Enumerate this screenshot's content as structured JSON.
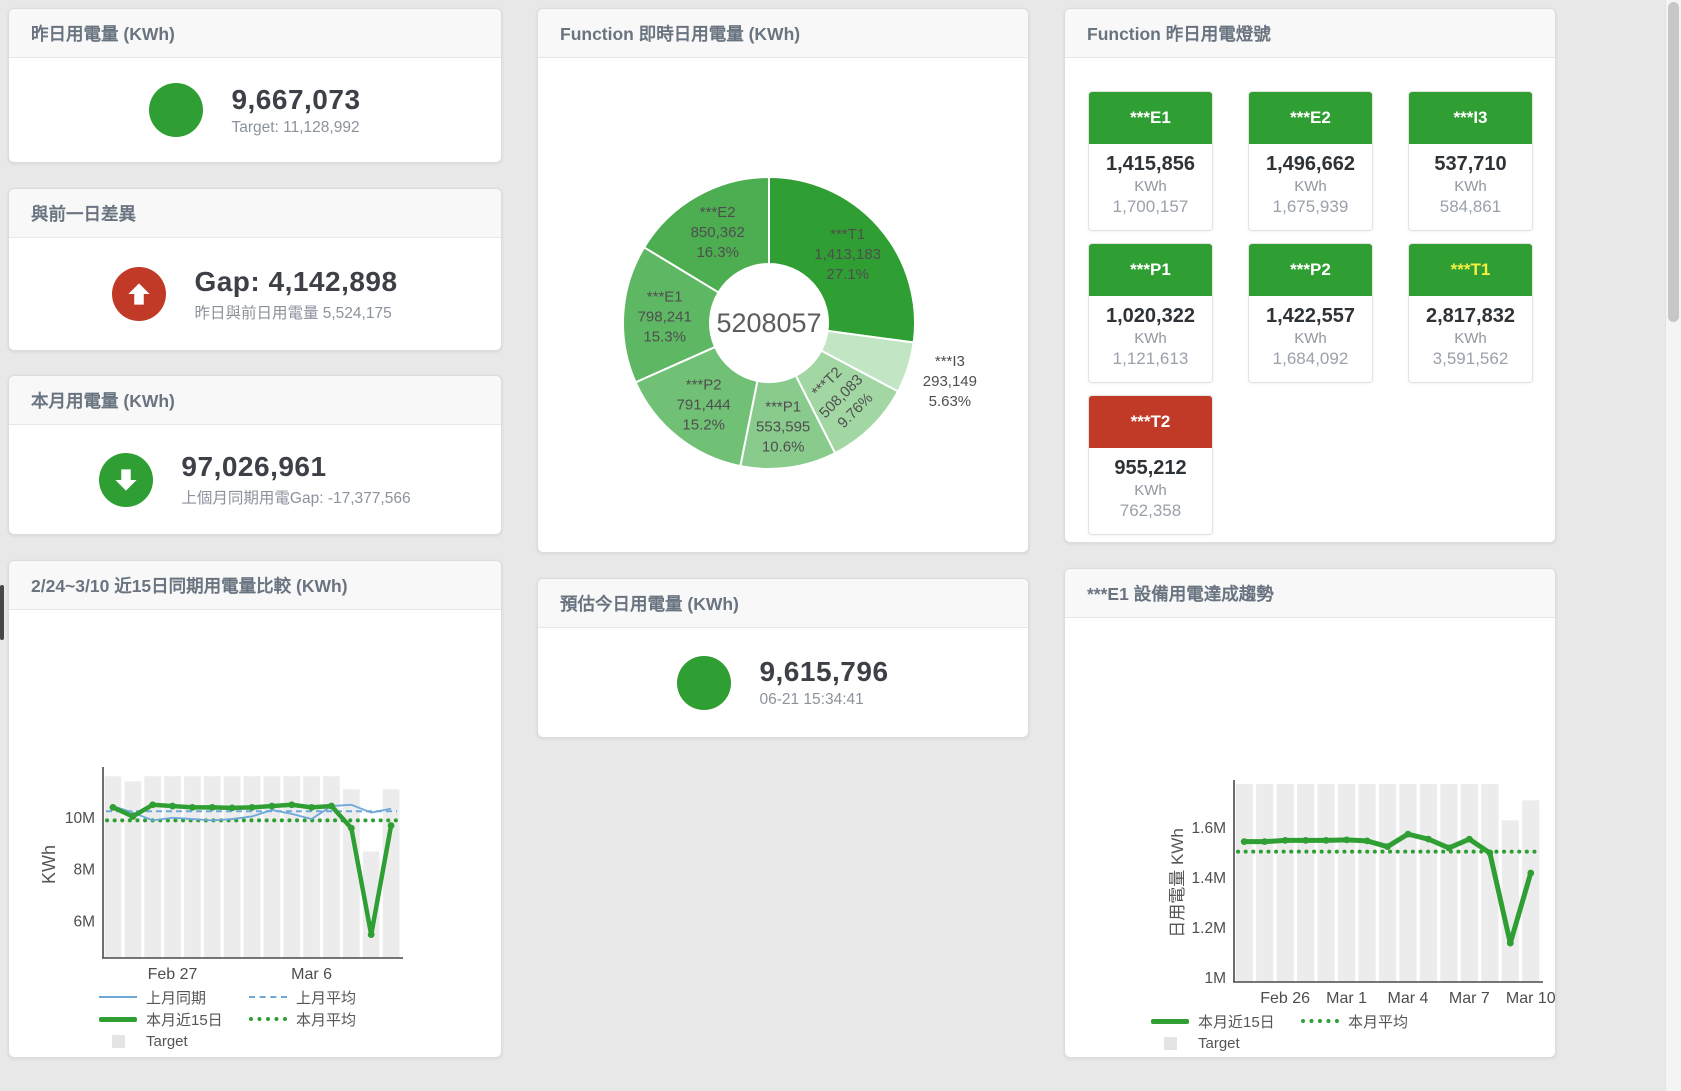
{
  "theme": {
    "page_bg": "#e8e8e8",
    "green": "#2f9e33",
    "red": "#c13a27",
    "yellow": "#f5f042",
    "blue": "#6ea8d8",
    "bar_gray": "#ececec",
    "axis_color": "#4a4a4a",
    "tick_color": "#4d4d4d"
  },
  "stat_cards": {
    "yesterday": {
      "title": "昨日用電量 (KWh)",
      "value": "9,667,073",
      "subtitle": "Target: 11,128,992",
      "indicator": "circle",
      "color": "green"
    },
    "gap": {
      "title": "與前一日差異",
      "value": "Gap: 4,142,898",
      "subtitle": "昨日與前日用電量 5,524,175",
      "indicator": "arrow-up",
      "color": "red"
    },
    "month": {
      "title": "本月用電量 (KWh)",
      "value": "97,026,961",
      "subtitle": "上個月同期用電Gap: -17,377,566",
      "indicator": "arrow-down",
      "color": "green"
    },
    "forecast": {
      "title": "預估今日用電量 (KWh)",
      "value": "9,615,796",
      "subtitle": "06-21 15:34:41",
      "indicator": "circle",
      "color": "green"
    }
  },
  "lights_card": {
    "title": "Function 昨日用電燈號",
    "unit": "KWh",
    "tiles": [
      {
        "label": "***E1",
        "value": "1,415,856",
        "target": "1,700,157",
        "status": "green",
        "label_color": "#ffffff"
      },
      {
        "label": "***E2",
        "value": "1,496,662",
        "target": "1,675,939",
        "status": "green",
        "label_color": "#ffffff"
      },
      {
        "label": "***I3",
        "value": "537,710",
        "target": "584,861",
        "status": "green",
        "label_color": "#ffffff"
      },
      {
        "label": "***P1",
        "value": "1,020,322",
        "target": "1,121,613",
        "status": "green",
        "label_color": "#ffffff"
      },
      {
        "label": "***P2",
        "value": "1,422,557",
        "target": "1,684,092",
        "status": "green",
        "label_color": "#ffffff"
      },
      {
        "label": "***T1",
        "value": "2,817,832",
        "target": "3,591,562",
        "status": "green",
        "label_color": "#f5f042"
      },
      {
        "label": "***T2",
        "value": "955,212",
        "target": "762,358",
        "status": "red",
        "label_color": "#ffffff"
      }
    ]
  },
  "chart_data": [
    {
      "id": "donut",
      "type": "pie",
      "title": "Function 即時日用電量 (KWh)",
      "center_total": "5208057",
      "legend_position": "none",
      "slices": [
        {
          "name": "***T1",
          "value": 1413183,
          "value_str": "1,413,183",
          "pct": "27.1%",
          "color": "#2f9e33",
          "label": "inside"
        },
        {
          "name": "***I3",
          "value": 293149,
          "value_str": "293,149",
          "pct": "5.63%",
          "color": "#c2e6c3",
          "label": "outside"
        },
        {
          "name": "***T2",
          "value": 508083,
          "value_str": "508,083",
          "pct": "9.76%",
          "color": "#a2d7a4",
          "label": "inside-rotated"
        },
        {
          "name": "***P1",
          "value": 553595,
          "value_str": "553,595",
          "pct": "10.6%",
          "color": "#89cb8c",
          "label": "inside"
        },
        {
          "name": "***P2",
          "value": 791444,
          "value_str": "791,444",
          "pct": "15.2%",
          "color": "#70c175",
          "label": "inside"
        },
        {
          "name": "***E1",
          "value": 798241,
          "value_str": "798,241",
          "pct": "15.3%",
          "color": "#5eb763",
          "label": "inside"
        },
        {
          "name": "***E2",
          "value": 850362,
          "value_str": "850,362",
          "pct": "16.3%",
          "color": "#4cad51",
          "label": "inside"
        }
      ]
    },
    {
      "id": "compare",
      "type": "line+bar",
      "title": "2/24~3/10 近15日同期用電量比較 (KWh)",
      "ylabel": "KWh",
      "ylim": [
        4.6,
        11.8
      ],
      "grid": false,
      "yticks": [
        {
          "v": 6,
          "label": "6M"
        },
        {
          "v": 8,
          "label": "8M"
        },
        {
          "v": 10,
          "label": "10M"
        }
      ],
      "xticks": [
        {
          "i": 3,
          "label": "Feb 27"
        },
        {
          "i": 10,
          "label": "Mar 6"
        }
      ],
      "target_bars": [
        11.6,
        11.4,
        11.6,
        11.6,
        11.6,
        11.6,
        11.6,
        11.6,
        11.6,
        11.6,
        11.6,
        11.6,
        11.1,
        8.7,
        11.1
      ],
      "last_month": [
        10.45,
        10.2,
        9.9,
        10.0,
        9.95,
        9.9,
        9.95,
        10.05,
        10.3,
        10.15,
        9.95,
        10.45,
        10.5,
        10.2,
        10.35
      ],
      "this_month": [
        10.4,
        10.05,
        10.5,
        10.45,
        10.4,
        10.4,
        10.38,
        10.4,
        10.45,
        10.5,
        10.4,
        10.45,
        9.6,
        5.5,
        9.7
      ],
      "last_month_avg": 10.25,
      "this_month_avg": 9.9,
      "legend": [
        {
          "swatch": "blue-line",
          "label": "上月同期"
        },
        {
          "swatch": "blue-dash",
          "label": "上月平均"
        },
        {
          "swatch": "green-line",
          "label": "本月近15日"
        },
        {
          "swatch": "green-dot",
          "label": "本月平均"
        },
        {
          "swatch": "gray-square",
          "label": "Target"
        }
      ]
    },
    {
      "id": "trend",
      "type": "line+bar",
      "title": "***E1 設備用電達成趨勢",
      "ylabel": "日用電量 KWh",
      "ylim": [
        0.985,
        1.775
      ],
      "grid": false,
      "yticks": [
        {
          "v": 1,
          "label": "1M"
        },
        {
          "v": 1.2,
          "label": "1.2M"
        },
        {
          "v": 1.4,
          "label": "1.4M"
        },
        {
          "v": 1.6,
          "label": "1.6M"
        }
      ],
      "xticks": [
        {
          "i": 2,
          "label": "Feb 26"
        },
        {
          "i": 5,
          "label": "Mar 1"
        },
        {
          "i": 8,
          "label": "Mar 4"
        },
        {
          "i": 11,
          "label": "Mar 7"
        },
        {
          "i": 14,
          "label": "Mar 10"
        }
      ],
      "target_bars": [
        1.8,
        1.8,
        1.8,
        1.8,
        1.8,
        1.8,
        1.8,
        1.8,
        1.8,
        1.8,
        1.8,
        1.8,
        1.8,
        1.63,
        1.71
      ],
      "this_month": [
        1.545,
        1.545,
        1.55,
        1.55,
        1.55,
        1.552,
        1.548,
        1.525,
        1.575,
        1.555,
        1.52,
        1.555,
        1.5,
        1.14,
        1.42
      ],
      "this_month_avg": 1.505,
      "legend": [
        {
          "swatch": "green-line",
          "label": "本月近15日"
        },
        {
          "swatch": "green-dot",
          "label": "本月平均"
        },
        {
          "swatch": "gray-square",
          "label": "Target"
        }
      ]
    }
  ]
}
